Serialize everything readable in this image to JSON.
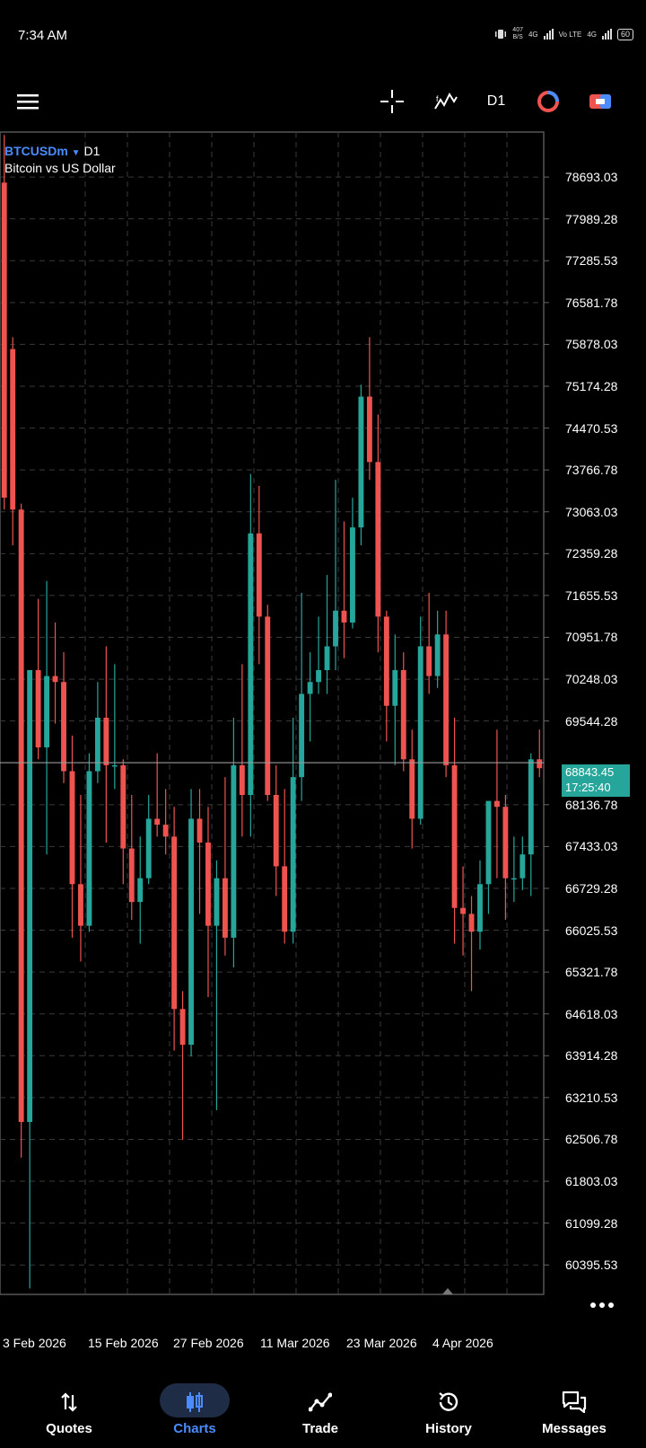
{
  "status": {
    "time": "7:34 AM",
    "speed": "407",
    "speed_unit": "B/S",
    "net1": "4G",
    "net2": "Vo LTE",
    "net3": "4G",
    "battery": "60"
  },
  "toolbar": {
    "timeframe": "D1"
  },
  "chart_data": {
    "type": "candlestick",
    "symbol": "BTCUSDm",
    "timeframe": "D1",
    "subtitle": "Bitcoin vs US Dollar",
    "ylim": [
      59900,
      79450
    ],
    "y_ticks": [
      "78693.03",
      "77989.28",
      "77285.53",
      "76581.78",
      "75878.03",
      "75174.28",
      "74470.53",
      "73766.78",
      "73063.03",
      "72359.28",
      "71655.53",
      "70951.78",
      "70248.03",
      "69544.28",
      "68136.78",
      "67433.03",
      "66729.28",
      "66025.53",
      "65321.78",
      "64618.03",
      "63914.28",
      "63210.53",
      "62506.78",
      "61803.03",
      "61099.28",
      "60395.53"
    ],
    "x_ticks": [
      "3 Feb 2026",
      "15 Feb 2026",
      "27 Feb 2026",
      "11 Mar 2026",
      "23 Mar 2026",
      "4 Apr 2026"
    ],
    "current_price": "68843.45",
    "countdown": "17:25:40",
    "candles": [
      {
        "o": 78600,
        "h": 79400,
        "l": 73100,
        "c": 73300
      },
      {
        "o": 75800,
        "h": 76000,
        "l": 72500,
        "c": 73100
      },
      {
        "o": 73100,
        "h": 73200,
        "l": 62200,
        "c": 62800
      },
      {
        "o": 62800,
        "h": 70400,
        "l": 60000,
        "c": 70400
      },
      {
        "o": 70400,
        "h": 71600,
        "l": 68900,
        "c": 69100
      },
      {
        "o": 69100,
        "h": 71900,
        "l": 67300,
        "c": 70300
      },
      {
        "o": 70300,
        "h": 71200,
        "l": 69500,
        "c": 70200
      },
      {
        "o": 70200,
        "h": 70700,
        "l": 68500,
        "c": 68700
      },
      {
        "o": 68700,
        "h": 69300,
        "l": 65900,
        "c": 66800
      },
      {
        "o": 66800,
        "h": 68300,
        "l": 65500,
        "c": 66100
      },
      {
        "o": 66100,
        "h": 69000,
        "l": 66000,
        "c": 68700
      },
      {
        "o": 68700,
        "h": 70200,
        "l": 68500,
        "c": 69600
      },
      {
        "o": 69600,
        "h": 70800,
        "l": 67500,
        "c": 68800
      },
      {
        "o": 68800,
        "h": 70500,
        "l": 68400,
        "c": 68800
      },
      {
        "o": 68800,
        "h": 68900,
        "l": 66800,
        "c": 67400
      },
      {
        "o": 67400,
        "h": 68300,
        "l": 66200,
        "c": 66500
      },
      {
        "o": 66500,
        "h": 67600,
        "l": 65800,
        "c": 66900
      },
      {
        "o": 66900,
        "h": 68300,
        "l": 66800,
        "c": 67900
      },
      {
        "o": 67900,
        "h": 69000,
        "l": 67600,
        "c": 67800
      },
      {
        "o": 67800,
        "h": 68400,
        "l": 67300,
        "c": 67600
      },
      {
        "o": 67600,
        "h": 68100,
        "l": 64000,
        "c": 64700
      },
      {
        "o": 64700,
        "h": 65000,
        "l": 62500,
        "c": 64100
      },
      {
        "o": 64100,
        "h": 68400,
        "l": 63900,
        "c": 67900
      },
      {
        "o": 67900,
        "h": 68400,
        "l": 66300,
        "c": 67500
      },
      {
        "o": 67500,
        "h": 68100,
        "l": 64900,
        "c": 66100
      },
      {
        "o": 66100,
        "h": 67200,
        "l": 63000,
        "c": 66900
      },
      {
        "o": 66900,
        "h": 68600,
        "l": 65600,
        "c": 65900
      },
      {
        "o": 65900,
        "h": 69600,
        "l": 65400,
        "c": 68800
      },
      {
        "o": 68800,
        "h": 70500,
        "l": 67600,
        "c": 68300
      },
      {
        "o": 68300,
        "h": 73700,
        "l": 67600,
        "c": 72700
      },
      {
        "o": 72700,
        "h": 73500,
        "l": 70500,
        "c": 71300
      },
      {
        "o": 71300,
        "h": 71500,
        "l": 68200,
        "c": 68300
      },
      {
        "o": 68300,
        "h": 68800,
        "l": 66600,
        "c": 67100
      },
      {
        "o": 67100,
        "h": 68400,
        "l": 65800,
        "c": 66000
      },
      {
        "o": 66000,
        "h": 69600,
        "l": 65800,
        "c": 68600
      },
      {
        "o": 68600,
        "h": 71700,
        "l": 68200,
        "c": 70000
      },
      {
        "o": 70000,
        "h": 70700,
        "l": 69200,
        "c": 70200
      },
      {
        "o": 70200,
        "h": 71300,
        "l": 70000,
        "c": 70400
      },
      {
        "o": 70400,
        "h": 72000,
        "l": 70000,
        "c": 70800
      },
      {
        "o": 70800,
        "h": 73600,
        "l": 70400,
        "c": 71400
      },
      {
        "o": 71400,
        "h": 72900,
        "l": 70600,
        "c": 71200
      },
      {
        "o": 71200,
        "h": 73300,
        "l": 71100,
        "c": 72800
      },
      {
        "o": 72800,
        "h": 75200,
        "l": 72500,
        "c": 75000
      },
      {
        "o": 75000,
        "h": 76000,
        "l": 73600,
        "c": 73900
      },
      {
        "o": 73900,
        "h": 74700,
        "l": 70700,
        "c": 71300
      },
      {
        "o": 71300,
        "h": 71400,
        "l": 69200,
        "c": 69800
      },
      {
        "o": 69800,
        "h": 71000,
        "l": 68800,
        "c": 70400
      },
      {
        "o": 70400,
        "h": 70700,
        "l": 68700,
        "c": 68900
      },
      {
        "o": 68900,
        "h": 69400,
        "l": 67400,
        "c": 67900
      },
      {
        "o": 67900,
        "h": 71300,
        "l": 67800,
        "c": 70800
      },
      {
        "o": 70800,
        "h": 71700,
        "l": 70000,
        "c": 70300
      },
      {
        "o": 70300,
        "h": 71400,
        "l": 70100,
        "c": 71000
      },
      {
        "o": 71000,
        "h": 71400,
        "l": 68600,
        "c": 68800
      },
      {
        "o": 68800,
        "h": 69600,
        "l": 65800,
        "c": 66400
      },
      {
        "o": 66400,
        "h": 67100,
        "l": 65600,
        "c": 66300
      },
      {
        "o": 66300,
        "h": 66600,
        "l": 65000,
        "c": 66000
      },
      {
        "o": 66000,
        "h": 67200,
        "l": 65700,
        "c": 66800
      },
      {
        "o": 66800,
        "h": 68100,
        "l": 66300,
        "c": 68200
      },
      {
        "o": 68200,
        "h": 69400,
        "l": 66900,
        "c": 68100
      },
      {
        "o": 68100,
        "h": 68300,
        "l": 66200,
        "c": 66900
      },
      {
        "o": 66900,
        "h": 67600,
        "l": 66500,
        "c": 66900
      },
      {
        "o": 66900,
        "h": 67600,
        "l": 66700,
        "c": 67300
      },
      {
        "o": 67300,
        "h": 69000,
        "l": 66600,
        "c": 68900
      },
      {
        "o": 68900,
        "h": 69400,
        "l": 68600,
        "c": 68750
      }
    ]
  },
  "nav": [
    {
      "label": "Quotes",
      "icon": "quotes-icon"
    },
    {
      "label": "Charts",
      "icon": "charts-icon"
    },
    {
      "label": "Trade",
      "icon": "trade-icon"
    },
    {
      "label": "History",
      "icon": "history-icon"
    },
    {
      "label": "Messages",
      "icon": "messages-icon"
    }
  ],
  "colors": {
    "bull": "#26a69a",
    "bear": "#ef5350",
    "accent": "#4a8cff",
    "grid": "#3a3a3a"
  }
}
